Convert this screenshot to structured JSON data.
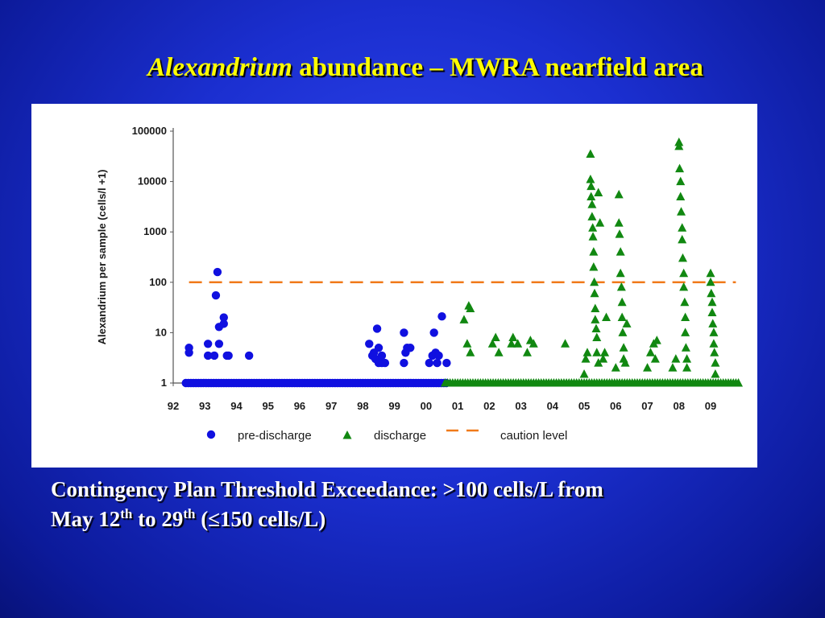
{
  "slide": {
    "title_italic": "Alexandrium",
    "title_rest": " abundance –   MWRA nearfield area",
    "caption": {
      "line1": "Contingency Plan Threshold Exceedance:  >100 cells/L from",
      "line2_a": "May 12",
      "sup1": "th",
      "line2_b": " to 29",
      "sup2": "th",
      "line2_c": " (≤150 cells/L)"
    }
  },
  "colors": {
    "pre_discharge": "#1010e0",
    "discharge": "#118811",
    "caution": "#f07a1a"
  },
  "icons": {
    "pre_discharge_marker": "circle-icon",
    "discharge_marker": "triangle-icon",
    "caution_marker": "dashed-line-icon"
  },
  "chart_data": {
    "type": "scatter",
    "title": "",
    "xlabel": "",
    "ylabel": "Alexandrium per sample (cells/l +1)",
    "y_scale": "log",
    "ylim": [
      1,
      100000
    ],
    "xlim": [
      1992,
      2009.8
    ],
    "y_ticks": [
      1,
      10,
      100,
      1000,
      10000,
      100000
    ],
    "y_tick_labels": [
      "1",
      "10",
      "100",
      "1000",
      "10000",
      "100000"
    ],
    "x_ticks": [
      1992,
      1993,
      1994,
      1995,
      1996,
      1997,
      1998,
      1999,
      2000,
      2001,
      2002,
      2003,
      2004,
      2005,
      2006,
      2007,
      2008,
      2009
    ],
    "x_tick_labels": [
      "92",
      "93",
      "94",
      "95",
      "96",
      "97",
      "98",
      "99",
      "00",
      "01",
      "02",
      "03",
      "04",
      "05",
      "06",
      "07",
      "08",
      "09"
    ],
    "grid": false,
    "legend_position": "bottom",
    "caution_level": 100,
    "series": [
      {
        "name": "pre-discharge",
        "marker": "circle",
        "points": [
          [
            1992.5,
            5
          ],
          [
            1992.5,
            4
          ],
          [
            1993.1,
            6
          ],
          [
            1993.1,
            3.5
          ],
          [
            1993.3,
            3.5
          ],
          [
            1993.35,
            55
          ],
          [
            1993.4,
            160
          ],
          [
            1993.45,
            13
          ],
          [
            1993.45,
            6
          ],
          [
            1993.6,
            20
          ],
          [
            1993.6,
            15
          ],
          [
            1993.7,
            3.5
          ],
          [
            1993.75,
            3.5
          ],
          [
            1994.4,
            3.5
          ],
          [
            1998.2,
            6
          ],
          [
            1998.3,
            3.5
          ],
          [
            1998.35,
            4
          ],
          [
            1998.4,
            3
          ],
          [
            1998.45,
            12
          ],
          [
            1998.5,
            2.5
          ],
          [
            1998.5,
            5
          ],
          [
            1998.6,
            2.5
          ],
          [
            1998.6,
            3.5
          ],
          [
            1998.7,
            2.5
          ],
          [
            1999.3,
            10
          ],
          [
            1999.3,
            2.5
          ],
          [
            1999.35,
            4
          ],
          [
            1999.4,
            5
          ],
          [
            1999.5,
            5
          ],
          [
            2000.1,
            2.5
          ],
          [
            2000.2,
            3.5
          ],
          [
            2000.25,
            10
          ],
          [
            2000.3,
            4
          ],
          [
            2000.35,
            2.5
          ],
          [
            2000.4,
            3.5
          ],
          [
            2000.5,
            21
          ],
          [
            2000.65,
            2.5
          ]
        ],
        "baseline_ranges": [
          [
            1992.4,
            2000.7
          ]
        ]
      },
      {
        "name": "discharge",
        "marker": "triangle",
        "points": [
          [
            2001.2,
            18
          ],
          [
            2001.3,
            6
          ],
          [
            2001.35,
            34
          ],
          [
            2001.4,
            30
          ],
          [
            2001.4,
            4
          ],
          [
            2002.1,
            6
          ],
          [
            2002.2,
            8
          ],
          [
            2002.3,
            4
          ],
          [
            2002.7,
            6
          ],
          [
            2002.75,
            8
          ],
          [
            2002.9,
            6
          ],
          [
            2003.2,
            4
          ],
          [
            2003.3,
            7
          ],
          [
            2003.4,
            6
          ],
          [
            2004.4,
            6
          ],
          [
            2005.0,
            1.5
          ],
          [
            2005.05,
            3
          ],
          [
            2005.1,
            4
          ],
          [
            2005.2,
            35000
          ],
          [
            2005.2,
            11000
          ],
          [
            2005.22,
            8000
          ],
          [
            2005.22,
            5000
          ],
          [
            2005.25,
            3500
          ],
          [
            2005.25,
            2000
          ],
          [
            2005.27,
            1200
          ],
          [
            2005.28,
            800
          ],
          [
            2005.3,
            400
          ],
          [
            2005.3,
            200
          ],
          [
            2005.32,
            100
          ],
          [
            2005.33,
            60
          ],
          [
            2005.35,
            30
          ],
          [
            2005.35,
            18
          ],
          [
            2005.38,
            12
          ],
          [
            2005.4,
            8
          ],
          [
            2005.4,
            4
          ],
          [
            2005.45,
            2.5
          ],
          [
            2005.45,
            6000
          ],
          [
            2005.5,
            1500
          ],
          [
            2005.6,
            3
          ],
          [
            2005.65,
            4
          ],
          [
            2005.7,
            20
          ],
          [
            2006.0,
            2
          ],
          [
            2006.1,
            5500
          ],
          [
            2006.1,
            1500
          ],
          [
            2006.12,
            900
          ],
          [
            2006.15,
            400
          ],
          [
            2006.15,
            150
          ],
          [
            2006.18,
            80
          ],
          [
            2006.2,
            40
          ],
          [
            2006.2,
            20
          ],
          [
            2006.22,
            10
          ],
          [
            2006.25,
            5
          ],
          [
            2006.25,
            3
          ],
          [
            2006.3,
            2.5
          ],
          [
            2006.35,
            15
          ],
          [
            2007.0,
            2
          ],
          [
            2007.1,
            4
          ],
          [
            2007.2,
            6
          ],
          [
            2007.25,
            3
          ],
          [
            2007.3,
            7
          ],
          [
            2007.8,
            2
          ],
          [
            2007.9,
            3
          ],
          [
            2008.0,
            60000
          ],
          [
            2008.0,
            50000
          ],
          [
            2008.02,
            18000
          ],
          [
            2008.05,
            10000
          ],
          [
            2008.05,
            5000
          ],
          [
            2008.07,
            2500
          ],
          [
            2008.1,
            1200
          ],
          [
            2008.1,
            700
          ],
          [
            2008.12,
            300
          ],
          [
            2008.15,
            150
          ],
          [
            2008.15,
            80
          ],
          [
            2008.18,
            40
          ],
          [
            2008.2,
            20
          ],
          [
            2008.2,
            10
          ],
          [
            2008.22,
            5
          ],
          [
            2008.25,
            3
          ],
          [
            2008.25,
            2
          ],
          [
            2009.0,
            150
          ],
          [
            2009.0,
            100
          ],
          [
            2009.02,
            60
          ],
          [
            2009.05,
            40
          ],
          [
            2009.05,
            25
          ],
          [
            2009.07,
            15
          ],
          [
            2009.1,
            10
          ],
          [
            2009.1,
            6
          ],
          [
            2009.12,
            4
          ],
          [
            2009.15,
            2.5
          ],
          [
            2009.15,
            1.5
          ]
        ],
        "baseline_ranges": [
          [
            2000.6,
            2009.9
          ]
        ]
      },
      {
        "name": "caution level",
        "marker": "dashed-line",
        "y": 100,
        "x_range": [
          1992.5,
          2009.8
        ]
      }
    ]
  }
}
